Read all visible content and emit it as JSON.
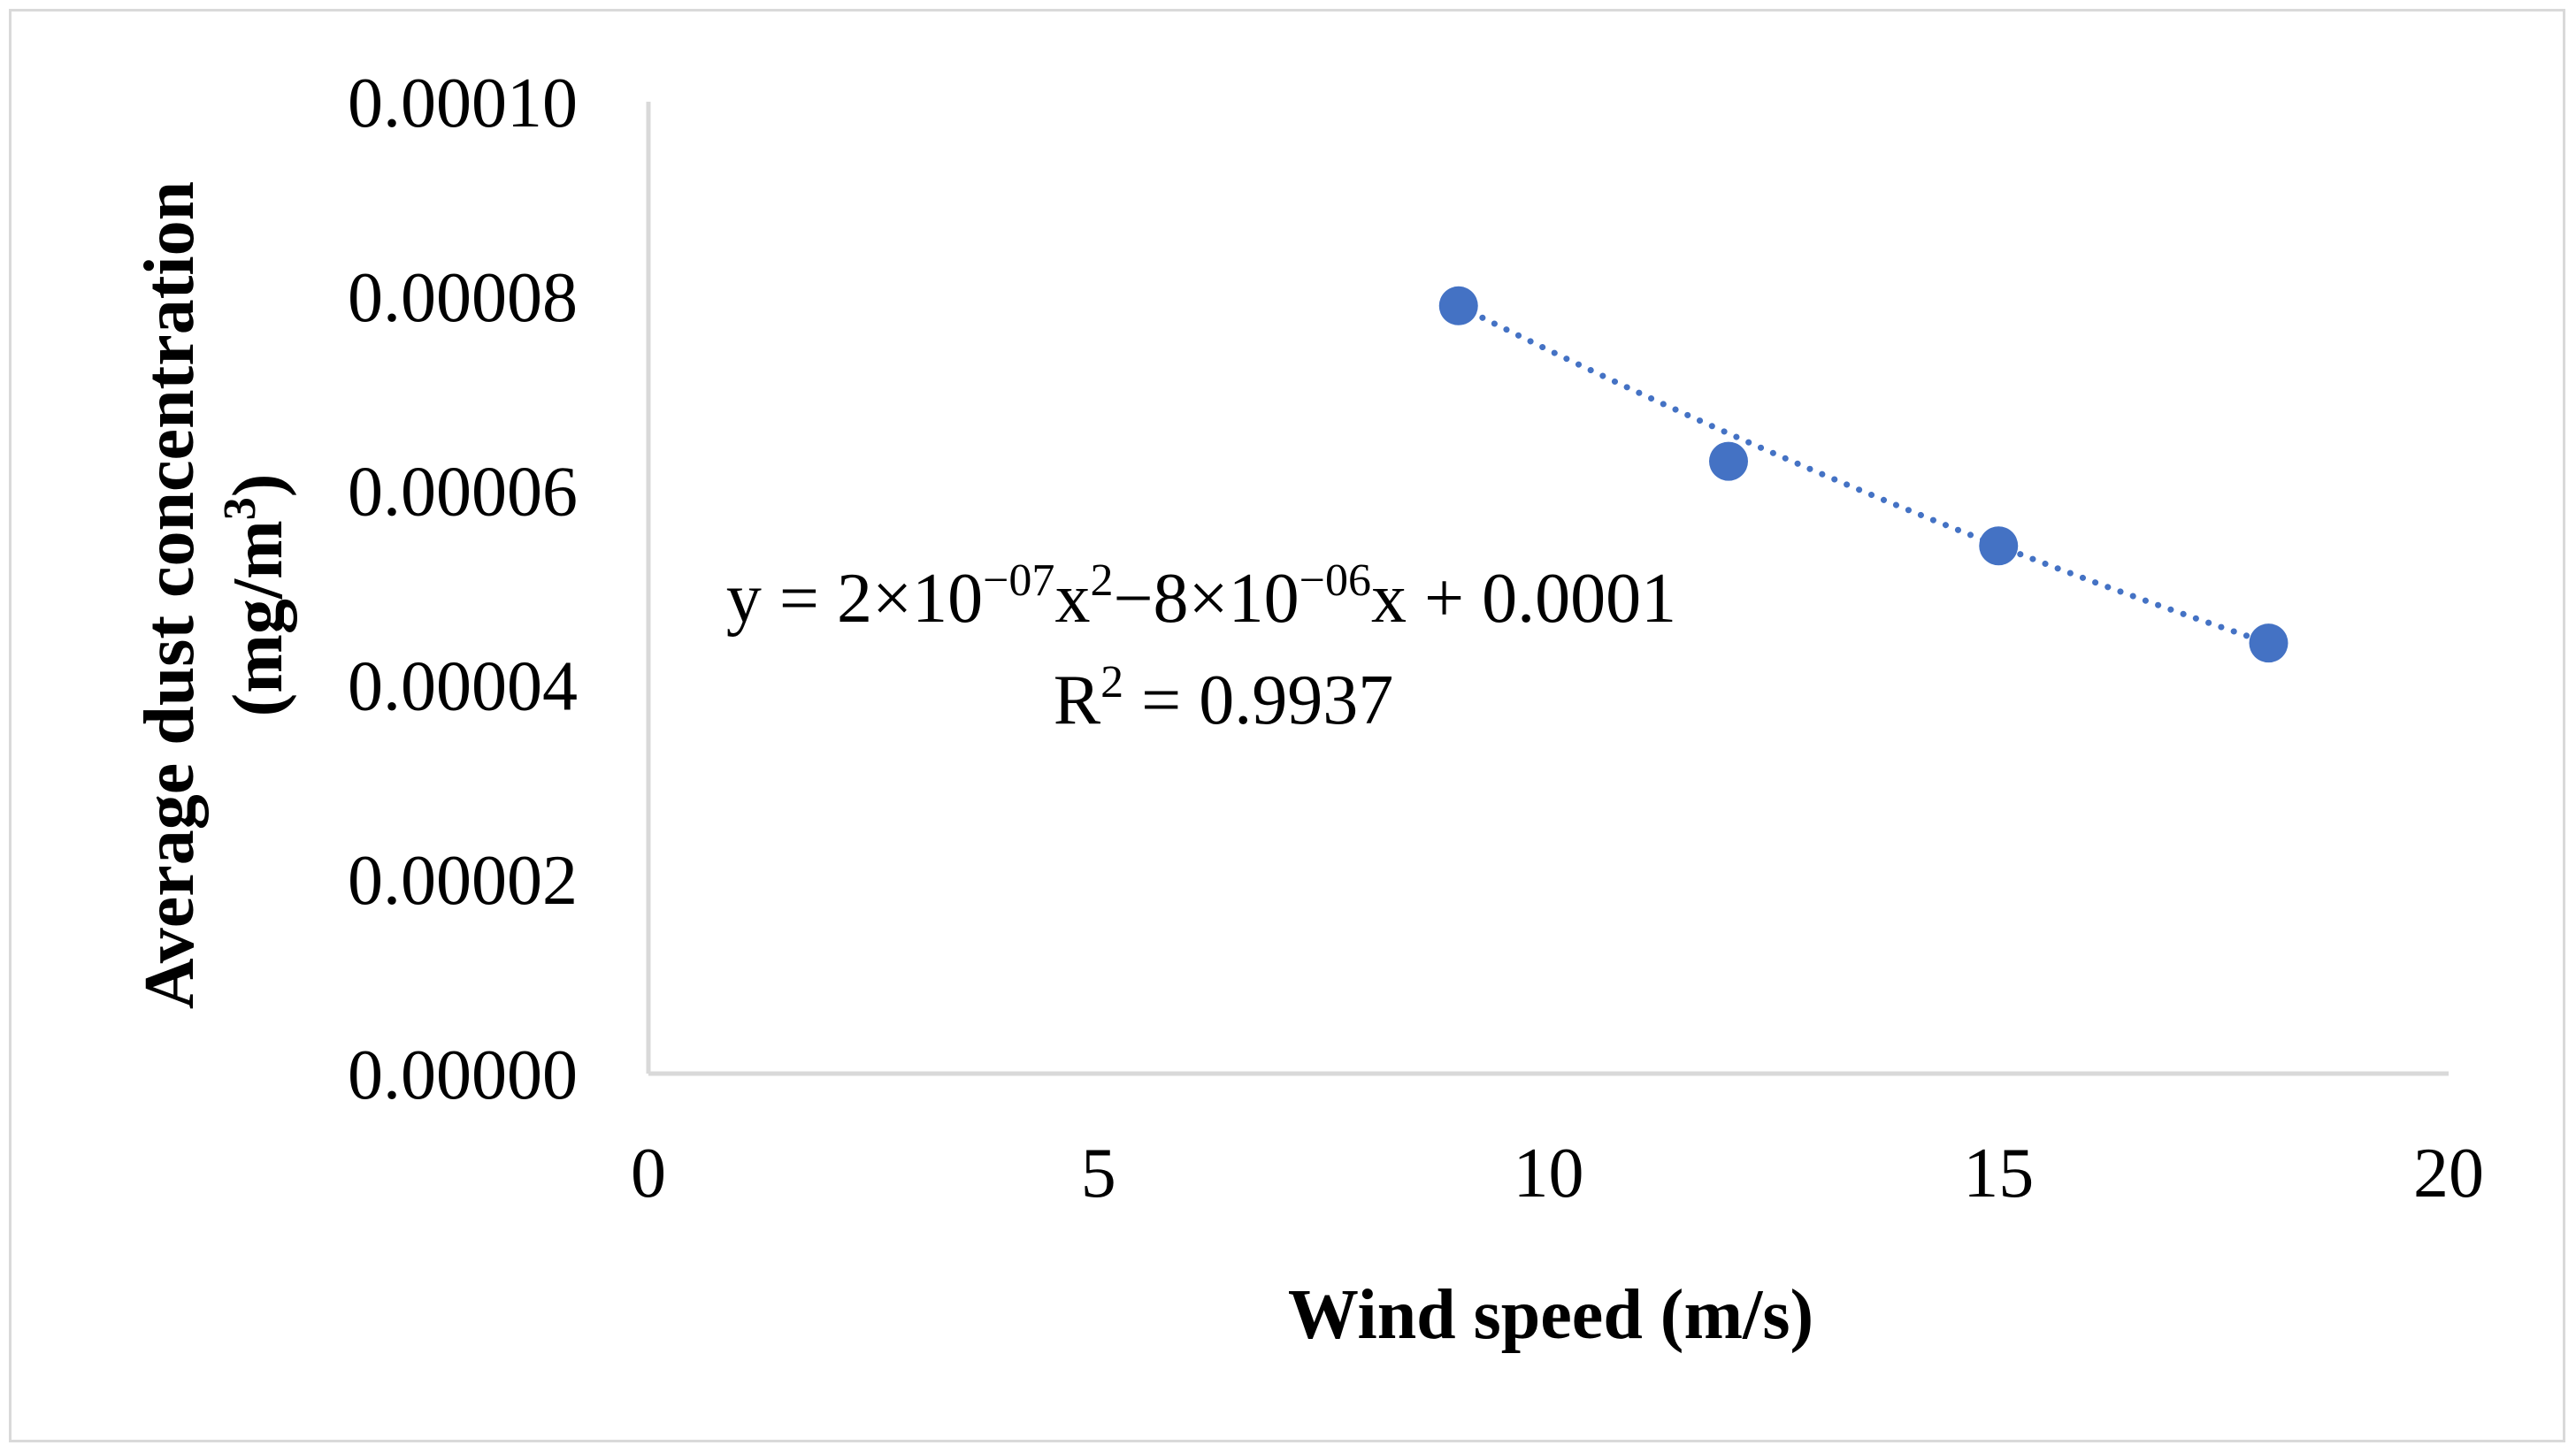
{
  "chart_data": {
    "type": "scatter",
    "title": "",
    "xlabel": "Wind speed (m/s)",
    "ylabel_line1": "Average dust concentration",
    "ylabel_line2_prefix": "(mg/m",
    "ylabel_line2_sup": "3",
    "ylabel_line2_suffix": ")",
    "xlim": [
      0,
      20
    ],
    "ylim": [
      0,
      0.0001
    ],
    "x_ticks": [
      0,
      5,
      10,
      15,
      20
    ],
    "x_tick_labels": [
      "0",
      "5",
      "10",
      "15",
      "20"
    ],
    "y_ticks": [
      0,
      2e-05,
      4e-05,
      6e-05,
      8e-05,
      0.0001
    ],
    "y_tick_labels": [
      "0.00000",
      "0.00002",
      "0.00004",
      "0.00006",
      "0.00008",
      "0.00010"
    ],
    "grid": false,
    "series": [
      {
        "name": "Average dust concentration",
        "x": [
          9,
          12,
          15,
          18
        ],
        "y": [
          7.9e-05,
          6.3e-05,
          5.43e-05,
          4.43e-05
        ],
        "color": "#4472c4"
      }
    ],
    "trendline": {
      "type": "polynomial",
      "order": 2,
      "x_range": [
        9,
        18
      ],
      "y_range": [
        7.9e-05,
        4.43e-05
      ],
      "style": "dotted",
      "color": "#4472c4"
    },
    "annotations": {
      "equation": {
        "y": "y = 2×10",
        "exp1": "−07",
        "x": "x",
        "pow2": "2",
        "minus": "−8×10",
        "exp2": "−06",
        "tail": "x + 0.0001"
      },
      "r2": {
        "r": "R",
        "pow": "2",
        "value": " = 0.9937"
      }
    },
    "axis_color": "#d9d9d9"
  }
}
